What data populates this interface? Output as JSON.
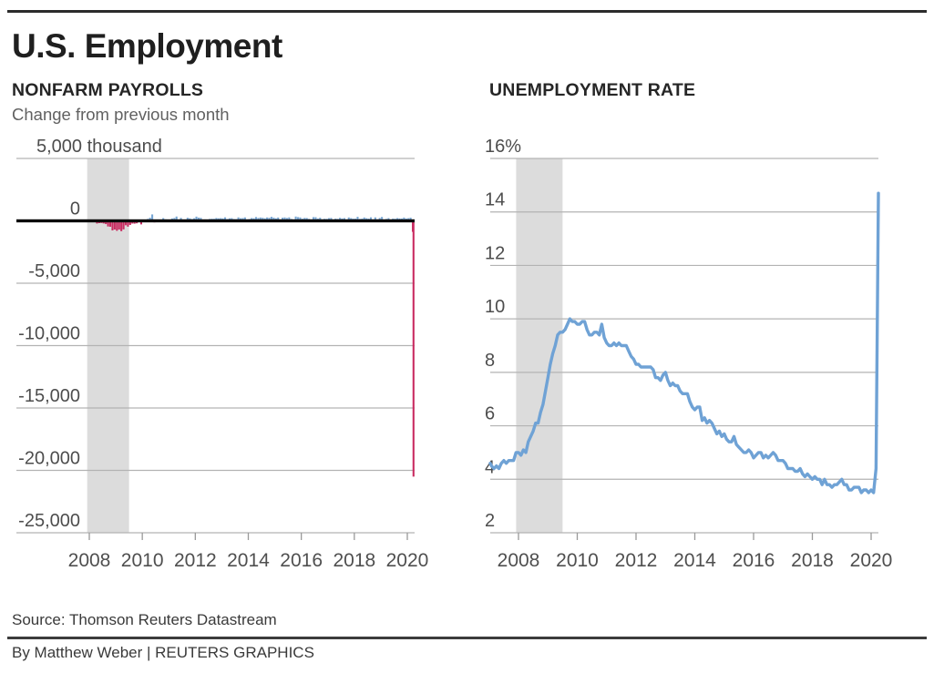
{
  "page": {
    "title": "U.S. Employment",
    "source": "Source: Thomson Reuters Datastream",
    "byline": "By Matthew Weber | REUTERS GRAPHICS"
  },
  "colors": {
    "positive_bar": "#78a6d3",
    "negative_bar": "#c92d62",
    "line": "#6fa2d5",
    "recession_band": "#dcdcdc",
    "gridline": "#b3b3b3",
    "zero_line": "#0a0a0a",
    "tick": "#999999"
  },
  "chart_data": [
    {
      "type": "bar",
      "title": "NONFARM PAYROLLS",
      "subtitle": "Change from previous month",
      "unit_label": "5,000 thousand",
      "y_ticks": [
        "5,000 thousand",
        "0",
        "-5,000",
        "-10,000",
        "-15,000",
        "-20,000",
        "-25,000"
      ],
      "y_tick_values": [
        5000,
        0,
        -5000,
        -10000,
        -15000,
        -20000,
        -25000
      ],
      "ylim": [
        -25000,
        5000
      ],
      "x_ticks": [
        2008,
        2010,
        2012,
        2014,
        2016,
        2018,
        2020
      ],
      "start": "2008-01",
      "frequency": "monthly",
      "recession_band": [
        2007.92,
        2009.5
      ],
      "grid": true,
      "values": [
        15,
        -86,
        -80,
        -214,
        -182,
        -172,
        -210,
        -259,
        -452,
        -474,
        -765,
        -697,
        -798,
        -701,
        -826,
        -684,
        -354,
        -467,
        -327,
        -216,
        -227,
        -198,
        -6,
        -283,
        18,
        -50,
        156,
        251,
        516,
        -122,
        -61,
        -42,
        -52,
        220,
        121,
        88,
        42,
        188,
        225,
        346,
        73,
        235,
        70,
        107,
        246,
        202,
        146,
        207,
        338,
        257,
        239,
        75,
        115,
        87,
        153,
        165,
        161,
        225,
        203,
        214,
        197,
        280,
        141,
        203,
        216,
        146,
        137,
        276,
        208,
        220,
        274,
        84,
        144,
        222,
        203,
        304,
        229,
        267,
        243,
        203,
        271,
        243,
        321,
        256,
        201,
        266,
        85,
        251,
        273,
        228,
        277,
        150,
        100,
        344,
        298,
        271,
        168,
        233,
        225,
        153,
        43,
        297,
        291,
        176,
        249,
        124,
        164,
        155,
        216,
        232,
        50,
        175,
        155,
        239,
        189,
        221,
        14,
        271,
        216,
        175,
        176,
        324,
        155,
        175,
        268,
        208,
        178,
        282,
        108,
        277,
        119,
        227,
        312,
        56,
        153,
        216,
        62,
        178,
        166,
        219,
        193,
        185,
        261,
        184,
        214,
        251,
        -881,
        -20500
      ]
    },
    {
      "type": "line",
      "title": "UNEMPLOYMENT RATE",
      "unit_label": "16%",
      "y_ticks": [
        "16%",
        "14",
        "12",
        "10",
        "8",
        "6",
        "4",
        "2"
      ],
      "y_tick_values": [
        16,
        14,
        12,
        10,
        8,
        6,
        4,
        2
      ],
      "ylim": [
        2,
        16
      ],
      "x_ticks": [
        2008,
        2010,
        2012,
        2014,
        2016,
        2018,
        2020
      ],
      "start": "2007-01",
      "frequency": "monthly",
      "recession_band": [
        2007.92,
        2009.5
      ],
      "grid": true,
      "values": [
        4.6,
        4.5,
        4.4,
        4.5,
        4.4,
        4.6,
        4.7,
        4.6,
        4.7,
        4.7,
        4.7,
        5.0,
        5.0,
        4.9,
        5.1,
        5.0,
        5.4,
        5.6,
        5.8,
        6.1,
        6.1,
        6.5,
        6.8,
        7.3,
        7.8,
        8.3,
        8.7,
        9.0,
        9.4,
        9.5,
        9.5,
        9.6,
        9.8,
        10.0,
        9.9,
        9.9,
        9.8,
        9.8,
        9.9,
        9.9,
        9.6,
        9.4,
        9.4,
        9.5,
        9.5,
        9.4,
        9.8,
        9.3,
        9.1,
        9.0,
        9.0,
        9.1,
        9.0,
        9.1,
        9.0,
        9.0,
        9.0,
        8.8,
        8.6,
        8.5,
        8.3,
        8.3,
        8.2,
        8.2,
        8.2,
        8.2,
        8.2,
        8.1,
        7.8,
        7.8,
        7.7,
        7.9,
        8.0,
        7.7,
        7.5,
        7.6,
        7.5,
        7.5,
        7.3,
        7.2,
        7.2,
        7.2,
        6.9,
        6.7,
        6.6,
        6.7,
        6.7,
        6.2,
        6.3,
        6.1,
        6.2,
        6.1,
        5.9,
        5.7,
        5.8,
        5.6,
        5.7,
        5.5,
        5.4,
        5.4,
        5.6,
        5.3,
        5.2,
        5.1,
        5.0,
        5.0,
        5.1,
        5.0,
        4.8,
        4.9,
        5.0,
        5.0,
        4.8,
        4.9,
        4.8,
        4.9,
        5.0,
        4.9,
        4.7,
        4.7,
        4.7,
        4.6,
        4.4,
        4.4,
        4.4,
        4.3,
        4.3,
        4.4,
        4.2,
        4.1,
        4.2,
        4.1,
        4.0,
        4.1,
        4.0,
        4.0,
        3.8,
        4.0,
        3.8,
        3.8,
        3.7,
        3.8,
        3.8,
        3.9,
        4.0,
        3.8,
        3.8,
        3.6,
        3.6,
        3.7,
        3.7,
        3.7,
        3.5,
        3.6,
        3.6,
        3.5,
        3.6,
        3.5,
        4.4,
        14.7
      ]
    }
  ]
}
